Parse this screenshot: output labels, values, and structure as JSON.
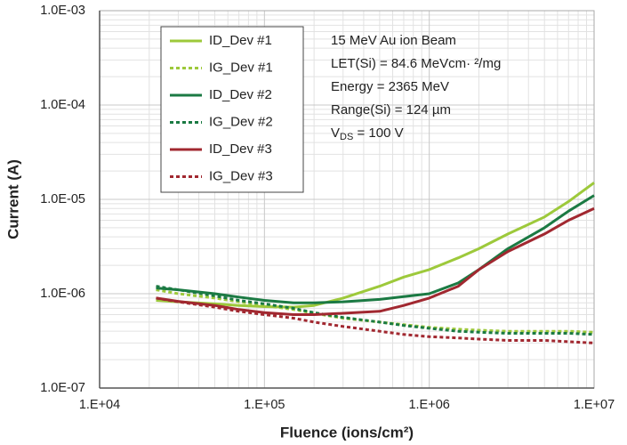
{
  "chart_data": {
    "type": "line",
    "x_label": "Fluence (ions/cm²)",
    "y_label": "Current (A)",
    "x_log": true,
    "y_log": true,
    "grid": true,
    "minor_grid": true,
    "legend_position": "upper left",
    "xlim": [
      10000,
      10000000
    ],
    "ylim": [
      1e-07,
      0.001
    ],
    "xticks": [
      {
        "value": 10000,
        "label": "1.E+04"
      },
      {
        "value": 100000,
        "label": "1.E+05"
      },
      {
        "value": 1000000,
        "label": "1.E+06"
      },
      {
        "value": 10000000,
        "label": "1.E+07"
      }
    ],
    "yticks": [
      {
        "value": 1e-07,
        "label": "1.0E-07"
      },
      {
        "value": 1e-06,
        "label": "1.0E-06"
      },
      {
        "value": 1e-05,
        "label": "1.0E-05"
      },
      {
        "value": 0.0001,
        "label": "1.0E-04"
      },
      {
        "value": 0.001,
        "label": "1.0E-03"
      }
    ],
    "annotations": [
      "15 MeV Au ion Beam",
      "LET(Si) = 84.6 MeVcm· ²/mg",
      "Energy = 2365 MeV",
      "Range(Si) = 124 µm"
    ],
    "annotation_vds": {
      "text": "V",
      "sub": "DS",
      "rest": " = 100 V"
    },
    "x": [
      22000,
      30000,
      50000,
      70000,
      100000,
      150000,
      200000,
      300000,
      500000,
      700000,
      1000000,
      1500000,
      2000000,
      3000000,
      5000000,
      7000000,
      10000000
    ],
    "series": [
      {
        "name": "ID_Dev #1",
        "color": "#9dc93b",
        "dashed": false,
        "values": [
          8.5e-07,
          8.2e-07,
          7.8e-07,
          7.5e-07,
          7.3e-07,
          7.2e-07,
          7.5e-07,
          9e-07,
          1.2e-06,
          1.5e-06,
          1.8e-06,
          2.4e-06,
          3e-06,
          4.3e-06,
          6.5e-06,
          9.5e-06,
          1.5e-05
        ]
      },
      {
        "name": "IG_Dev #1",
        "color": "#9dc93b",
        "dashed": true,
        "values": [
          1.1e-06,
          1e-06,
          9e-07,
          8.2e-07,
          7.5e-07,
          6.8e-07,
          6.2e-07,
          5.5e-07,
          5e-07,
          4.7e-07,
          4.4e-07,
          4.2e-07,
          4.1e-07,
          4e-07,
          4e-07,
          4e-07,
          3.9e-07
        ]
      },
      {
        "name": "ID_Dev #2",
        "color": "#1b7a43",
        "dashed": false,
        "values": [
          1.15e-06,
          1.1e-06,
          1e-06,
          9.2e-07,
          8.5e-07,
          8e-07,
          8e-07,
          8.2e-07,
          8.7e-07,
          9.3e-07,
          1e-06,
          1.3e-06,
          1.8e-06,
          3e-06,
          5e-06,
          7.5e-06,
          1.1e-05
        ]
      },
      {
        "name": "IG_Dev #2",
        "color": "#1b7a43",
        "dashed": true,
        "values": [
          1.2e-06,
          1.1e-06,
          9.5e-07,
          8.5e-07,
          7.8e-07,
          7e-07,
          6.3e-07,
          5.6e-07,
          5e-07,
          4.6e-07,
          4.3e-07,
          4e-07,
          3.9e-07,
          3.8e-07,
          3.8e-07,
          3.8e-07,
          3.7e-07
        ]
      },
      {
        "name": "ID_Dev #3",
        "color": "#a12830",
        "dashed": false,
        "values": [
          9e-07,
          8.3e-07,
          7.5e-07,
          6.8e-07,
          6.3e-07,
          6e-07,
          6e-07,
          6.2e-07,
          6.5e-07,
          7.5e-07,
          9e-07,
          1.2e-06,
          1.8e-06,
          2.8e-06,
          4.3e-06,
          6e-06,
          8e-06
        ]
      },
      {
        "name": "IG_Dev #3",
        "color": "#a12830",
        "dashed": true,
        "values": [
          9e-07,
          8.2e-07,
          7.2e-07,
          6.5e-07,
          6e-07,
          5.5e-07,
          5e-07,
          4.5e-07,
          4e-07,
          3.7e-07,
          3.5e-07,
          3.4e-07,
          3.3e-07,
          3.2e-07,
          3.2e-07,
          3.1e-07,
          3e-07
        ]
      }
    ]
  }
}
